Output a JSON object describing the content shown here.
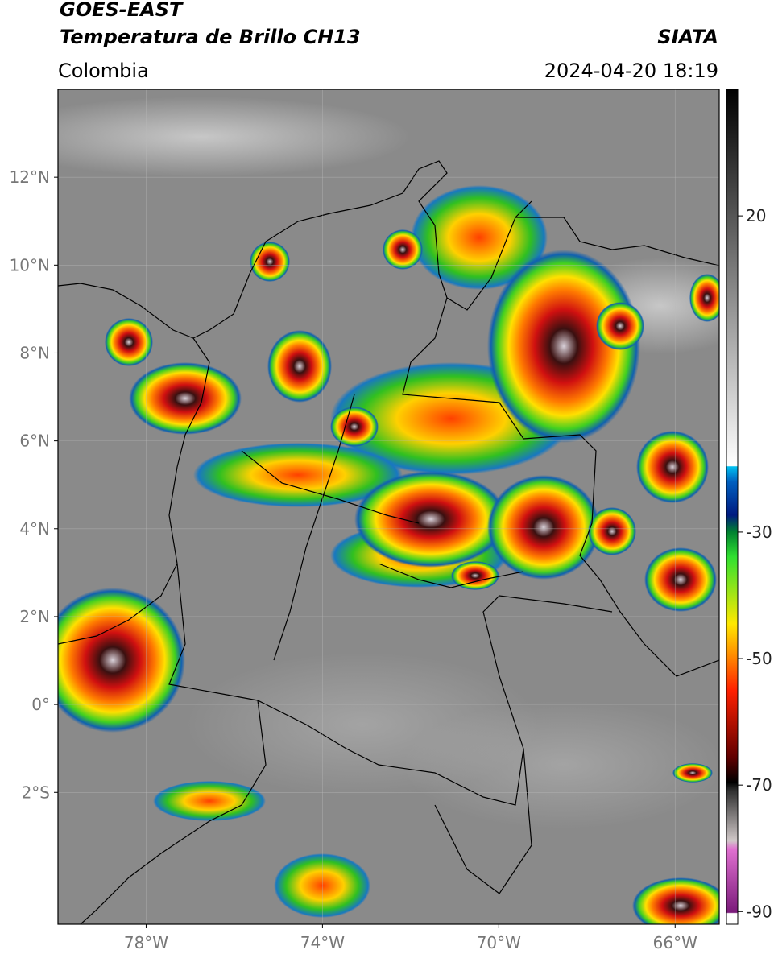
{
  "map": {
    "title": "GOES-EAST",
    "subtitle": "Temperatura de Brillo CH13",
    "source": "SIATA",
    "region": "Colombia",
    "datetime": "2024-04-20 18:19",
    "xlim": [
      -80,
      -65
    ],
    "ylim": [
      -5,
      14
    ],
    "xticks": [
      {
        "value": -78,
        "label": "78°W"
      },
      {
        "value": -74,
        "label": "74°W"
      },
      {
        "value": -70,
        "label": "70°W"
      },
      {
        "value": -66,
        "label": "66°W"
      }
    ],
    "yticks": [
      {
        "value": 12,
        "label": "12°N"
      },
      {
        "value": 10,
        "label": "10°N"
      },
      {
        "value": 8,
        "label": "8°N"
      },
      {
        "value": 6,
        "label": "6°N"
      },
      {
        "value": 4,
        "label": "4°N"
      },
      {
        "value": 2,
        "label": "2°N"
      },
      {
        "value": 0,
        "label": "0°"
      },
      {
        "value": -2,
        "label": "2°S"
      }
    ],
    "colorbar": {
      "lim": [
        -92,
        40
      ],
      "ticks": [
        20,
        -30,
        -50,
        -70,
        -90
      ]
    }
  }
}
